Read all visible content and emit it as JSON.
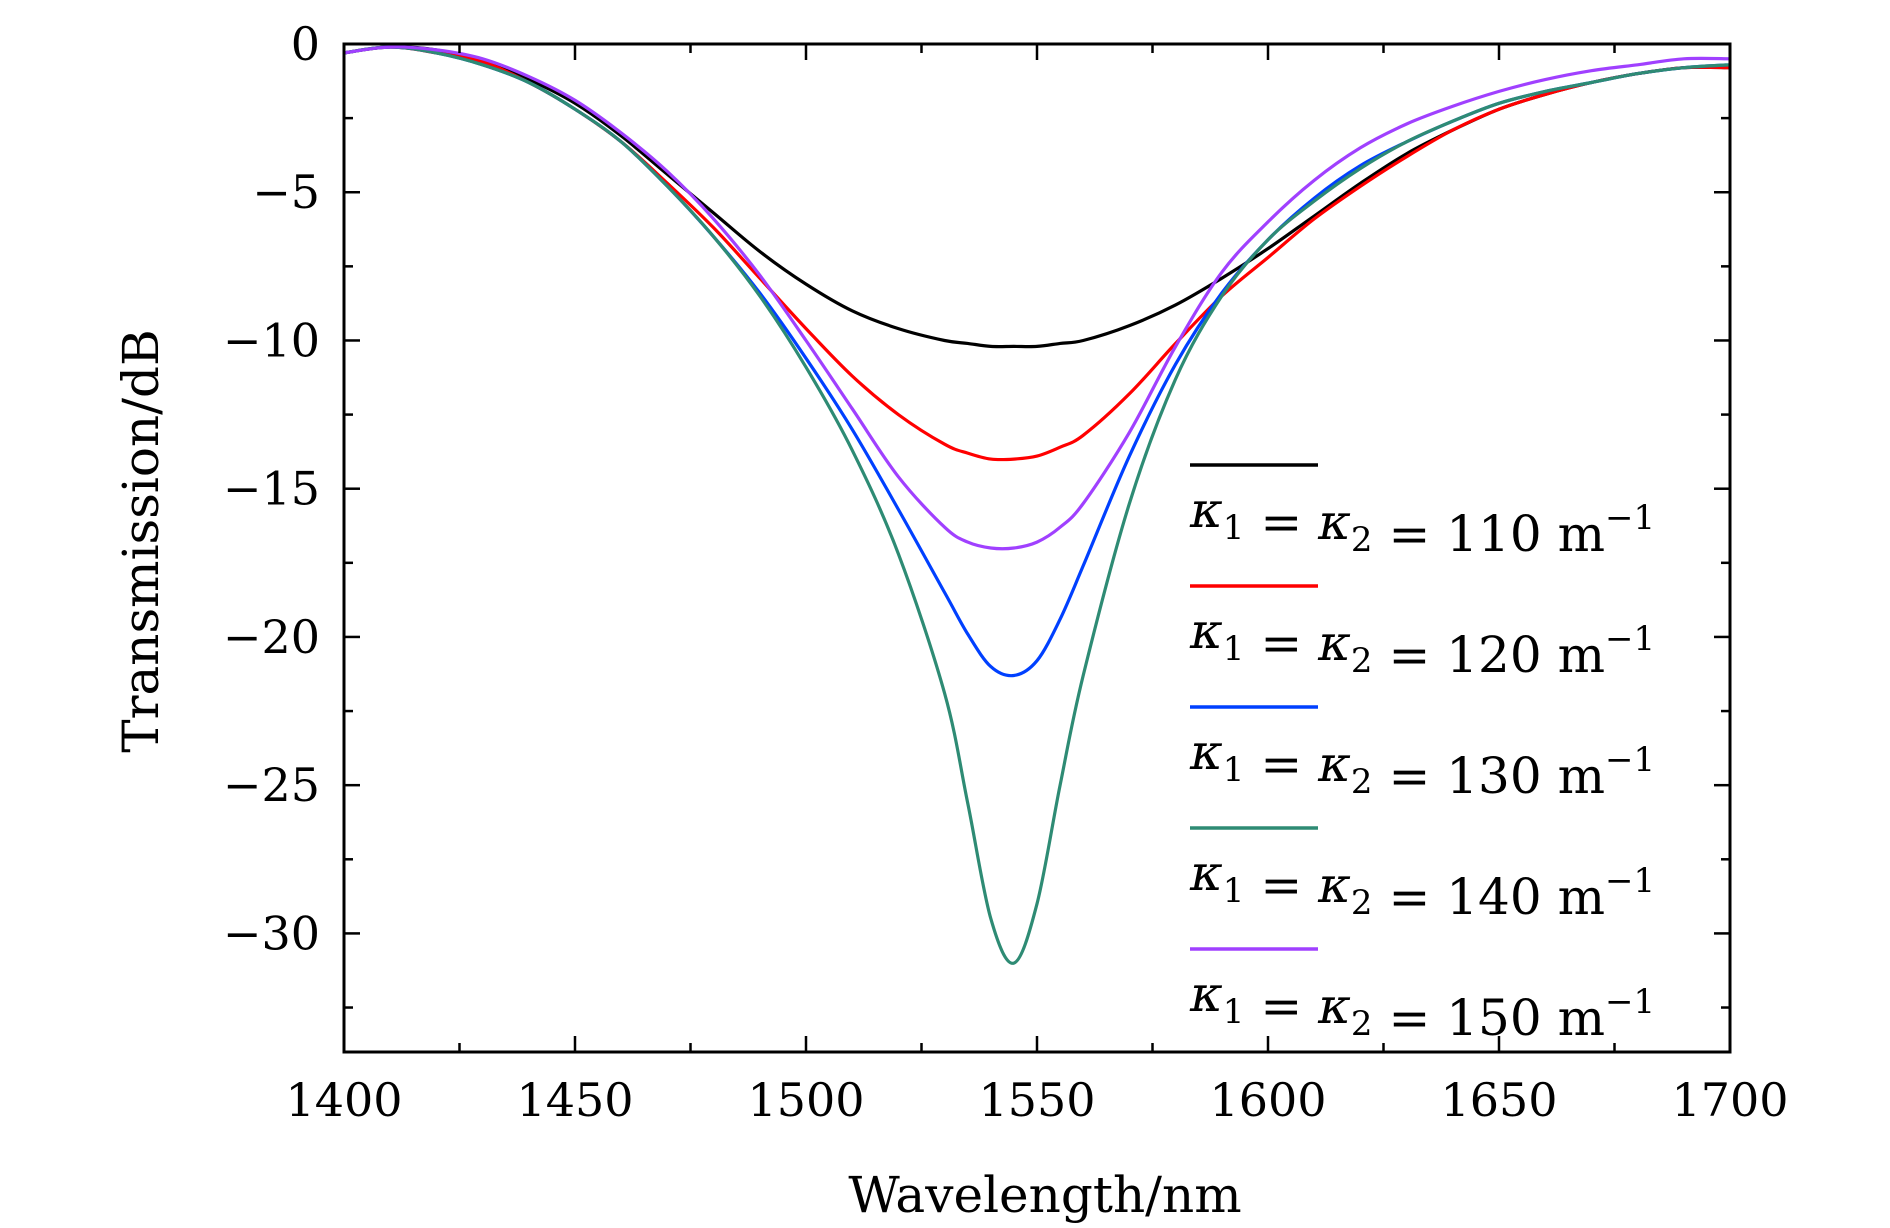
{
  "chart_data": {
    "type": "line",
    "title": "",
    "xlabel": "Wavelength/nm",
    "ylabel": "Transmission/dB",
    "xlim": [
      1400,
      1700
    ],
    "ylim": [
      -34,
      0
    ],
    "x_ticks": [
      1400,
      1450,
      1500,
      1550,
      1600,
      1650,
      1700
    ],
    "x_tick_labels": [
      "1400",
      "1450",
      "1500",
      "1550",
      "1600",
      "1650",
      "1700"
    ],
    "y_ticks": [
      0,
      -5,
      -10,
      -15,
      -20,
      -25,
      -30
    ],
    "y_tick_labels": [
      "0",
      "−5",
      "−10",
      "−15",
      "−20",
      "−25",
      "−30"
    ],
    "grid": false,
    "legend_position": "right",
    "legend_format": {
      "kappa": "κ",
      "sub1": "1",
      "sub2": "2",
      "eq": "=",
      "unit": "m",
      "exp": "−1"
    },
    "center_wavelength": 1545,
    "x": [
      1400,
      1410,
      1420,
      1430,
      1440,
      1450,
      1460,
      1470,
      1480,
      1490,
      1500,
      1510,
      1520,
      1530,
      1535,
      1540,
      1545,
      1550,
      1555,
      1560,
      1570,
      1580,
      1590,
      1600,
      1610,
      1620,
      1630,
      1640,
      1650,
      1660,
      1670,
      1680,
      1690,
      1700
    ],
    "series": [
      {
        "name": "110",
        "color": "#000000",
        "values": [
          -0.3,
          -0.1,
          -0.2,
          -0.6,
          -1.2,
          -2.0,
          -3.1,
          -4.4,
          -5.7,
          -7.0,
          -8.1,
          -9.0,
          -9.6,
          -10.0,
          -10.1,
          -10.2,
          -10.2,
          -10.2,
          -10.1,
          -10.0,
          -9.5,
          -8.8,
          -7.9,
          -6.9,
          -5.8,
          -4.7,
          -3.7,
          -2.9,
          -2.2,
          -1.7,
          -1.3,
          -1.0,
          -0.8,
          -0.8
        ]
      },
      {
        "name": "120",
        "color": "#ff0000",
        "values": [
          -0.3,
          -0.1,
          -0.3,
          -0.6,
          -1.3,
          -2.2,
          -3.3,
          -4.7,
          -6.2,
          -7.9,
          -9.6,
          -11.2,
          -12.5,
          -13.5,
          -13.8,
          -14.0,
          -14.0,
          -13.9,
          -13.6,
          -13.2,
          -11.8,
          -10.1,
          -8.5,
          -7.2,
          -5.9,
          -4.8,
          -3.8,
          -2.9,
          -2.2,
          -1.7,
          -1.3,
          -1.0,
          -0.8,
          -0.8
        ]
      },
      {
        "name": "130",
        "color": "#0040ff",
        "values": [
          -0.3,
          -0.1,
          -0.3,
          -0.7,
          -1.3,
          -2.2,
          -3.3,
          -4.8,
          -6.5,
          -8.4,
          -10.6,
          -13.0,
          -15.7,
          -18.5,
          -19.9,
          -21.0,
          -21.3,
          -20.8,
          -19.4,
          -17.6,
          -13.9,
          -10.8,
          -8.4,
          -6.6,
          -5.2,
          -4.1,
          -3.3,
          -2.6,
          -2.0,
          -1.6,
          -1.3,
          -1.0,
          -0.8,
          -0.7
        ]
      },
      {
        "name": "140",
        "color": "#2e8b74",
        "values": [
          -0.3,
          -0.1,
          -0.3,
          -0.7,
          -1.3,
          -2.2,
          -3.3,
          -4.8,
          -6.5,
          -8.5,
          -10.9,
          -13.7,
          -17.2,
          -21.9,
          -25.6,
          -29.5,
          -31.0,
          -29.0,
          -25.0,
          -21.3,
          -15.5,
          -11.3,
          -8.5,
          -6.6,
          -5.3,
          -4.2,
          -3.3,
          -2.6,
          -2.0,
          -1.6,
          -1.3,
          -1.0,
          -0.8,
          -0.7
        ]
      },
      {
        "name": "150",
        "color": "#a040ff",
        "values": [
          -0.3,
          -0.1,
          -0.2,
          -0.5,
          -1.1,
          -1.9,
          -3.0,
          -4.3,
          -5.9,
          -7.8,
          -10.0,
          -12.3,
          -14.6,
          -16.3,
          -16.8,
          -17.0,
          -17.0,
          -16.8,
          -16.3,
          -15.5,
          -13.1,
          -10.2,
          -7.7,
          -6.0,
          -4.6,
          -3.5,
          -2.7,
          -2.1,
          -1.6,
          -1.2,
          -0.9,
          -0.7,
          -0.5,
          -0.5
        ]
      }
    ]
  }
}
